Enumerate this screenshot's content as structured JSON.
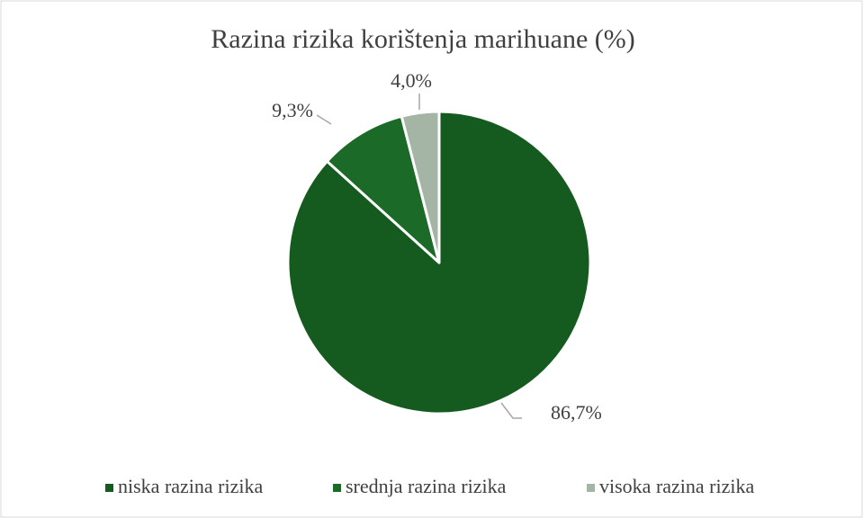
{
  "chart_data": {
    "type": "pie",
    "title": "Razina rizika korištenja marihuane (%)",
    "categories": [
      "niska razina rizika",
      "srednja razina rizika",
      "visoka razina rizika"
    ],
    "values": [
      86.7,
      9.3,
      4.0
    ],
    "value_labels": [
      "86,7%",
      "9,3%",
      "4,0%"
    ],
    "colors": [
      "#155a1f",
      "#1b6a27",
      "#a4b5a6"
    ],
    "legend": "bottom"
  }
}
